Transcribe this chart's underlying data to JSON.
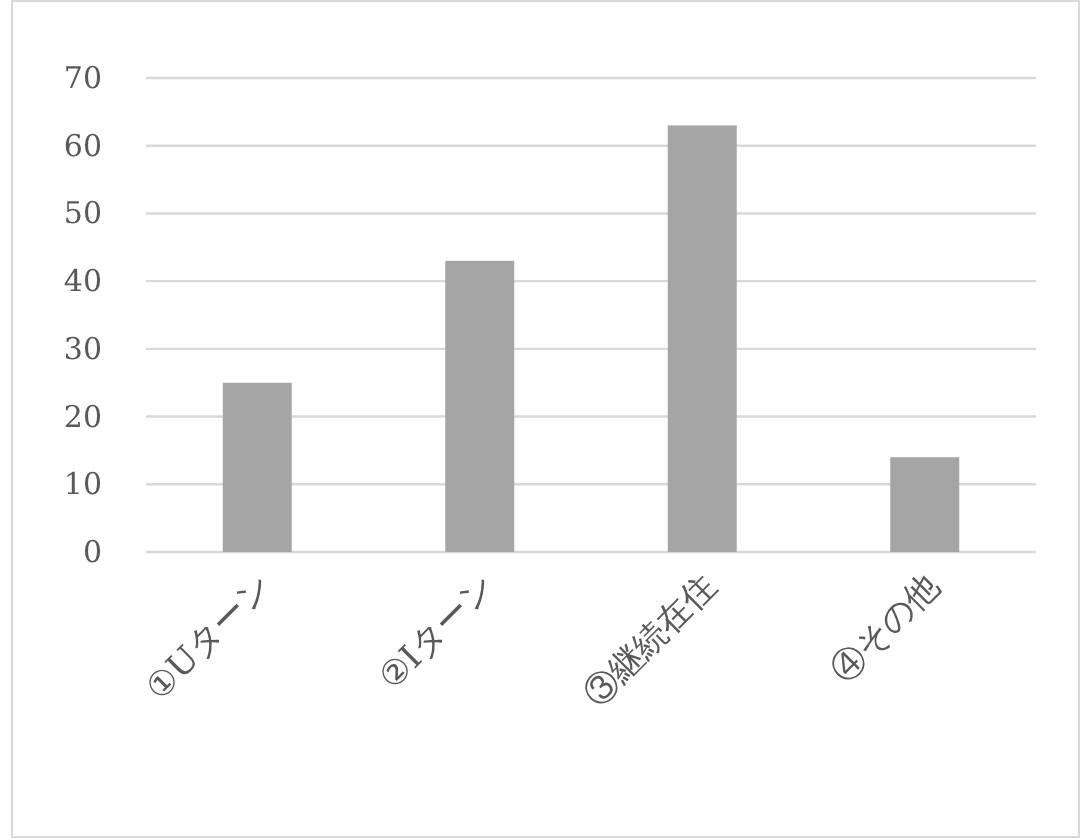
{
  "chart_data": {
    "type": "bar",
    "categories": [
      "①Uターン",
      "②Iターン",
      "③継続在住",
      "④その他"
    ],
    "values": [
      25,
      43,
      63,
      14
    ],
    "color": "#a5a5a5",
    "ylim": [
      0,
      70
    ],
    "yticks": [
      0,
      10,
      20,
      30,
      40,
      50,
      60,
      70
    ],
    "grid": "y"
  }
}
